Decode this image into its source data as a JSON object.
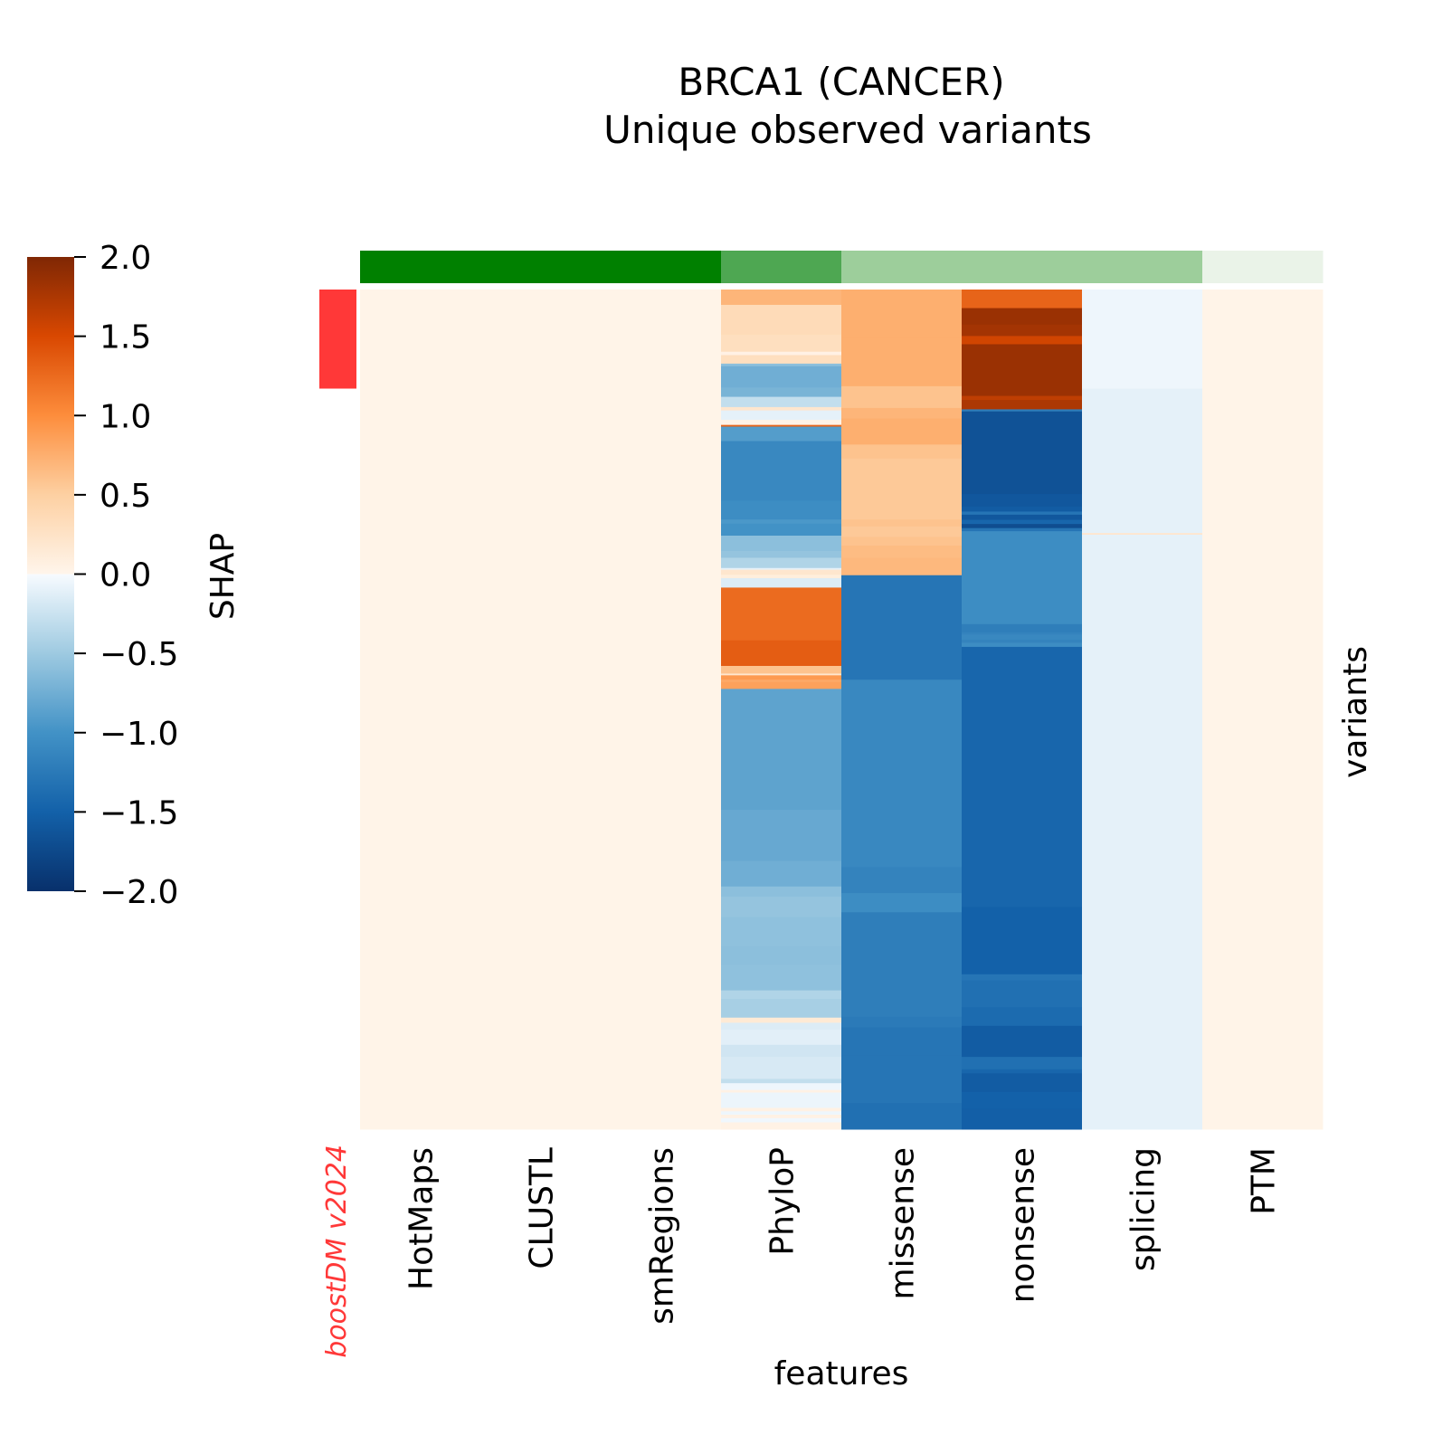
{
  "chart_data": {
    "type": "heatmap",
    "title": "BRCA1 (CANCER)",
    "subtitle": "Unique observed variants",
    "xlabel": "features",
    "ylabel": "variants",
    "row_annotation_label": "boostDM v2024",
    "row_annotation_color": "#ff3838",
    "row_annotation_fraction": 0.118,
    "colorbar": {
      "label": "SHAP",
      "vmin": -2.0,
      "vmax": 2.0,
      "ticks": [
        "2.0",
        "1.5",
        "1.0",
        "0.5",
        "0.0",
        "−0.5",
        "−1.0",
        "−1.5",
        "−2.0"
      ],
      "tick_values": [
        2.0,
        1.5,
        1.0,
        0.5,
        0.0,
        -0.5,
        -1.0,
        -1.5,
        -2.0
      ]
    },
    "columns": [
      "HotMaps",
      "CLUSTL",
      "smRegions",
      "PhyloP",
      "missense",
      "nonsense",
      "splicing",
      "PTM"
    ],
    "column_group_colors": [
      "#008000",
      "#008000",
      "#008000",
      "#4ea752",
      "#9dce9b",
      "#9dce9b",
      "#9dce9b",
      "#eaf3e8"
    ],
    "segments": {
      "HotMaps": [
        [
          1.0,
          0.02
        ]
      ],
      "CLUSTL": [
        [
          1.0,
          0.02
        ]
      ],
      "smRegions": [
        [
          1.0,
          0.02
        ]
      ],
      "PhyloP": [
        [
          0.018,
          0.7
        ],
        [
          0.035,
          0.35
        ],
        [
          0.02,
          0.3
        ],
        [
          0.004,
          0.05
        ],
        [
          0.01,
          0.3
        ],
        [
          0.003,
          -0.6
        ],
        [
          0.025,
          -0.75
        ],
        [
          0.011,
          -0.7
        ],
        [
          0.012,
          -0.3
        ],
        [
          0.004,
          0.2
        ],
        [
          0.011,
          -0.1
        ],
        [
          0.006,
          0.03
        ],
        [
          0.002,
          1.3
        ],
        [
          0.017,
          -0.9
        ],
        [
          0.07,
          -1.1
        ],
        [
          0.022,
          -1.05
        ],
        [
          0.005,
          -0.95
        ],
        [
          0.014,
          -1.0
        ],
        [
          0.018,
          -0.6
        ],
        [
          0.008,
          -0.55
        ],
        [
          0.012,
          -0.4
        ],
        [
          0.002,
          -0.1
        ],
        [
          0.006,
          0.2
        ],
        [
          0.004,
          0.1
        ],
        [
          0.011,
          -0.15
        ],
        [
          0.062,
          1.25
        ],
        [
          0.03,
          1.35
        ],
        [
          0.009,
          0.6
        ],
        [
          0.002,
          0.2
        ],
        [
          0.005,
          0.9
        ],
        [
          0.003,
          0.8
        ],
        [
          0.008,
          0.85
        ],
        [
          0.13,
          -0.85
        ],
        [
          0.012,
          -0.85
        ],
        [
          0.06,
          -0.8
        ],
        [
          0.03,
          -0.75
        ],
        [
          0.012,
          -0.6
        ],
        [
          0.024,
          -0.55
        ],
        [
          0.034,
          -0.58
        ],
        [
          0.022,
          -0.6
        ],
        [
          0.03,
          -0.58
        ],
        [
          0.01,
          -0.4
        ],
        [
          0.022,
          -0.45
        ],
        [
          0.006,
          0.15
        ],
        [
          0.008,
          -0.15
        ],
        [
          0.018,
          -0.12
        ],
        [
          0.014,
          -0.22
        ],
        [
          0.026,
          -0.18
        ],
        [
          0.005,
          -0.3
        ],
        [
          0.008,
          -0.05
        ],
        [
          0.003,
          0.05
        ],
        [
          0.018,
          -0.06
        ],
        [
          0.004,
          0.05
        ],
        [
          0.004,
          -0.05
        ],
        [
          0.004,
          0.05
        ],
        [
          0.005,
          -0.04
        ],
        [
          0.008,
          0.04
        ]
      ],
      "missense": [
        [
          0.055,
          0.75
        ],
        [
          0.056,
          0.75
        ],
        [
          0.025,
          0.6
        ],
        [
          0.012,
          0.7
        ],
        [
          0.03,
          0.75
        ],
        [
          0.016,
          0.6
        ],
        [
          0.07,
          0.55
        ],
        [
          0.008,
          0.6
        ],
        [
          0.012,
          0.55
        ],
        [
          0.01,
          0.6
        ],
        [
          0.014,
          0.65
        ],
        [
          0.02,
          0.68
        ],
        [
          0.12,
          -1.3
        ],
        [
          0.215,
          -1.1
        ],
        [
          0.03,
          -1.15
        ],
        [
          0.022,
          -1.05
        ],
        [
          0.12,
          -1.2
        ],
        [
          0.012,
          -1.25
        ],
        [
          0.032,
          -1.3
        ],
        [
          0.055,
          -1.3
        ],
        [
          0.03,
          -1.35
        ]
      ],
      "nonsense": [
        [
          0.018,
          1.3
        ],
        [
          0.016,
          1.85
        ],
        [
          0.011,
          1.8
        ],
        [
          0.008,
          1.55
        ],
        [
          0.05,
          1.85
        ],
        [
          0.004,
          1.65
        ],
        [
          0.009,
          1.75
        ],
        [
          0.002,
          -1.2
        ],
        [
          0.08,
          -1.65
        ],
        [
          0.012,
          -1.6
        ],
        [
          0.005,
          -1.55
        ],
        [
          0.003,
          -1.3
        ],
        [
          0.005,
          -1.6
        ],
        [
          0.004,
          -1.45
        ],
        [
          0.004,
          -1.7
        ],
        [
          0.003,
          -1.3
        ],
        [
          0.09,
          -1.05
        ],
        [
          0.008,
          -1.2
        ],
        [
          0.002,
          -1.15
        ],
        [
          0.005,
          -1.1
        ],
        [
          0.003,
          -1.15
        ],
        [
          0.004,
          -1.05
        ],
        [
          0.252,
          -1.45
        ],
        [
          0.065,
          -1.5
        ],
        [
          0.006,
          -1.3
        ],
        [
          0.026,
          -1.35
        ],
        [
          0.018,
          -1.4
        ],
        [
          0.03,
          -1.55
        ],
        [
          0.012,
          -1.35
        ],
        [
          0.004,
          -1.45
        ],
        [
          0.018,
          -1.55
        ],
        [
          0.016,
          -1.5
        ],
        [
          0.02,
          -1.52
        ]
      ],
      "splicing": [
        [
          0.118,
          -0.05
        ],
        [
          0.172,
          -0.1
        ],
        [
          0.002,
          0.2
        ],
        [
          0.708,
          -0.1
        ]
      ],
      "PTM": [
        [
          1.0,
          0.02
        ]
      ]
    }
  }
}
